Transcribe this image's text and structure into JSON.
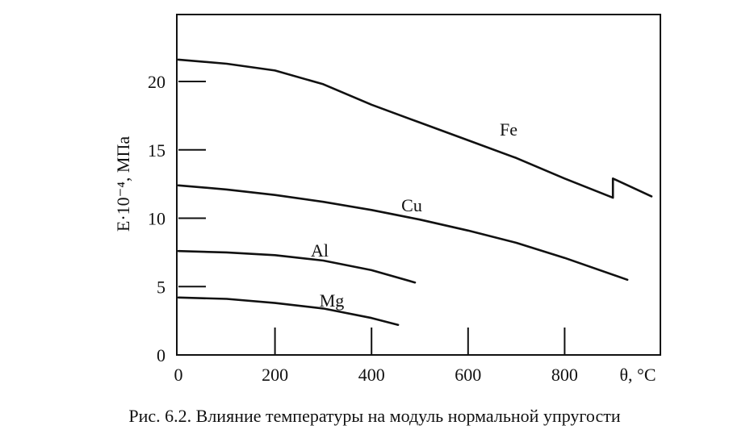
{
  "chart_data": {
    "type": "line",
    "ylabel": "E·10⁻⁴, МПа",
    "x_unit_label": "θ, °C",
    "xlim": [
      0,
      980
    ],
    "ylim": [
      0,
      24
    ],
    "x_ticks": [
      0,
      200,
      400,
      600,
      800
    ],
    "y_ticks": [
      0,
      5,
      10,
      15,
      20
    ],
    "grid": false,
    "series": [
      {
        "name": "Fe",
        "x": [
          0,
          100,
          200,
          300,
          400,
          500,
          600,
          700,
          800,
          900,
          900,
          980
        ],
        "y": [
          21.6,
          21.3,
          20.8,
          19.8,
          18.3,
          17.0,
          15.7,
          14.4,
          12.9,
          11.5,
          12.9,
          11.6
        ]
      },
      {
        "name": "Cu",
        "x": [
          0,
          100,
          200,
          300,
          400,
          500,
          600,
          700,
          800,
          930
        ],
        "y": [
          12.4,
          12.1,
          11.7,
          11.2,
          10.6,
          9.9,
          9.1,
          8.2,
          7.1,
          5.5
        ]
      },
      {
        "name": "Al",
        "x": [
          0,
          100,
          200,
          300,
          400,
          490
        ],
        "y": [
          7.6,
          7.5,
          7.3,
          6.9,
          6.2,
          5.3
        ]
      },
      {
        "name": "Mg",
        "x": [
          0,
          100,
          200,
          300,
          400,
          455
        ],
        "y": [
          4.2,
          4.1,
          3.8,
          3.4,
          2.7,
          2.2
        ]
      }
    ],
    "caption": "Рис. 6.2. Влияние температуры на модуль нормальной упругости"
  }
}
